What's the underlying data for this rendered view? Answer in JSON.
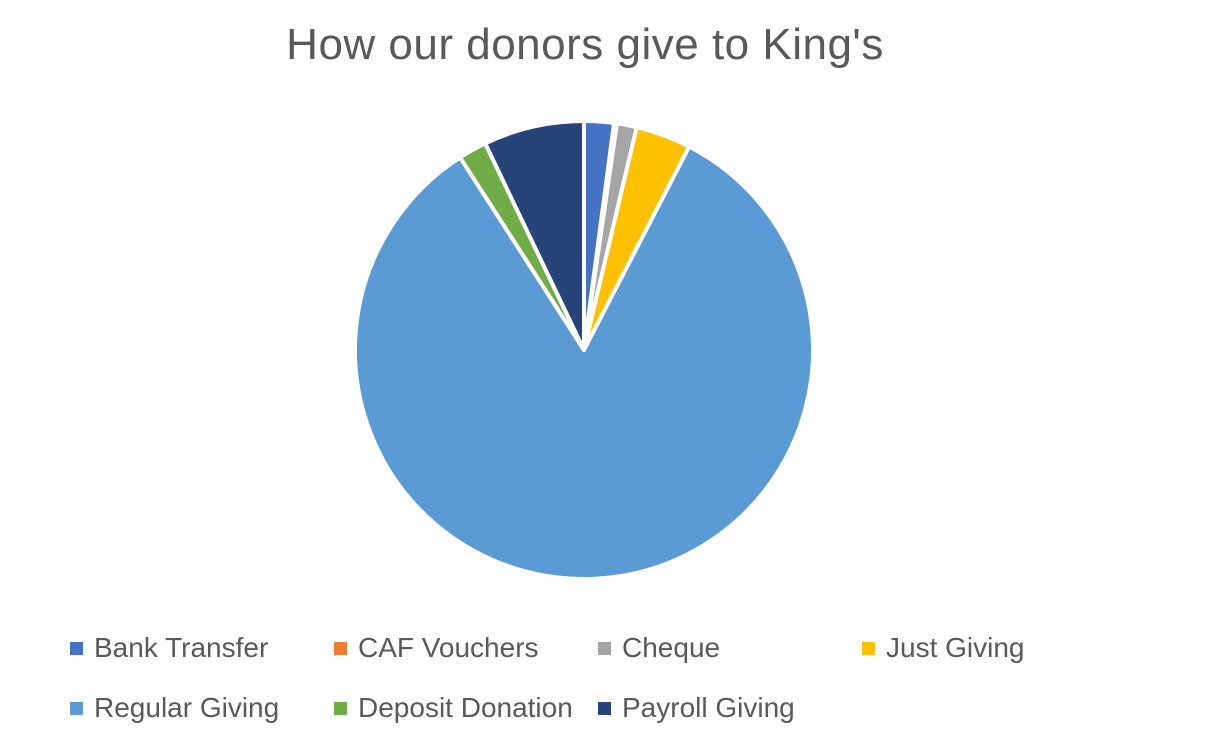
{
  "chart_data": {
    "type": "pie",
    "title": "How our donors give to King's",
    "start_angle_deg": 0,
    "direction": "clockwise",
    "legend_position": "bottom",
    "slices": [
      {
        "label": "Bank Transfer",
        "value": 2.1,
        "color": "#4472C4"
      },
      {
        "label": "CAF Vouchers",
        "value": 0.2,
        "color": "#ED7D31"
      },
      {
        "label": "Cheque",
        "value": 1.4,
        "color": "#A5A5A5"
      },
      {
        "label": "Just Giving",
        "value": 3.9,
        "color": "#FFC000"
      },
      {
        "label": "Regular Giving",
        "value": 83.3,
        "color": "#5B9BD5"
      },
      {
        "label": "Deposit Donation",
        "value": 2.0,
        "color": "#70AD47"
      },
      {
        "label": "Payroll Giving",
        "value": 7.1,
        "color": "#264478"
      }
    ]
  }
}
